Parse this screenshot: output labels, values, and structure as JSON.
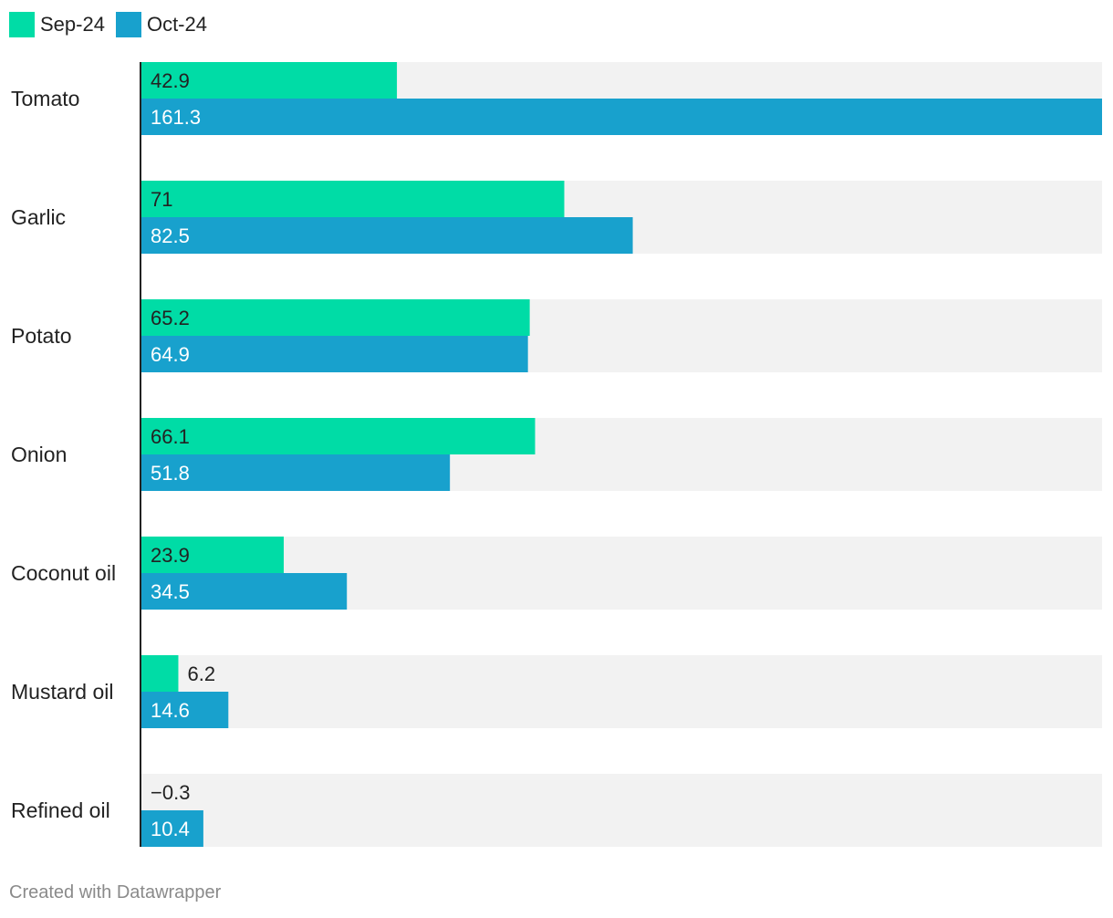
{
  "chart_data": {
    "type": "bar",
    "orientation": "horizontal",
    "categories": [
      "Tomato",
      "Garlic",
      "Potato",
      "Onion",
      "Coconut oil",
      "Mustard oil",
      "Refined oil"
    ],
    "series": [
      {
        "name": "Sep-24",
        "color": "#00dca6",
        "values": [
          42.9,
          71,
          65.2,
          66.1,
          23.9,
          6.2,
          -0.3
        ],
        "labels": [
          "42.9",
          "71",
          "65.2",
          "66.1",
          "23.9",
          "6.2",
          "−0.3"
        ]
      },
      {
        "name": "Oct-24",
        "color": "#18a1cd",
        "values": [
          161.3,
          82.5,
          64.9,
          51.8,
          34.5,
          14.6,
          10.4
        ],
        "labels": [
          "161.3",
          "82.5",
          "64.9",
          "51.8",
          "34.5",
          "14.6",
          "10.4"
        ]
      }
    ],
    "xlim": [
      0,
      161.3
    ],
    "legend_position": "top-left",
    "background_band_color": "#f2f2f2"
  },
  "footer": "Created with Datawrapper"
}
